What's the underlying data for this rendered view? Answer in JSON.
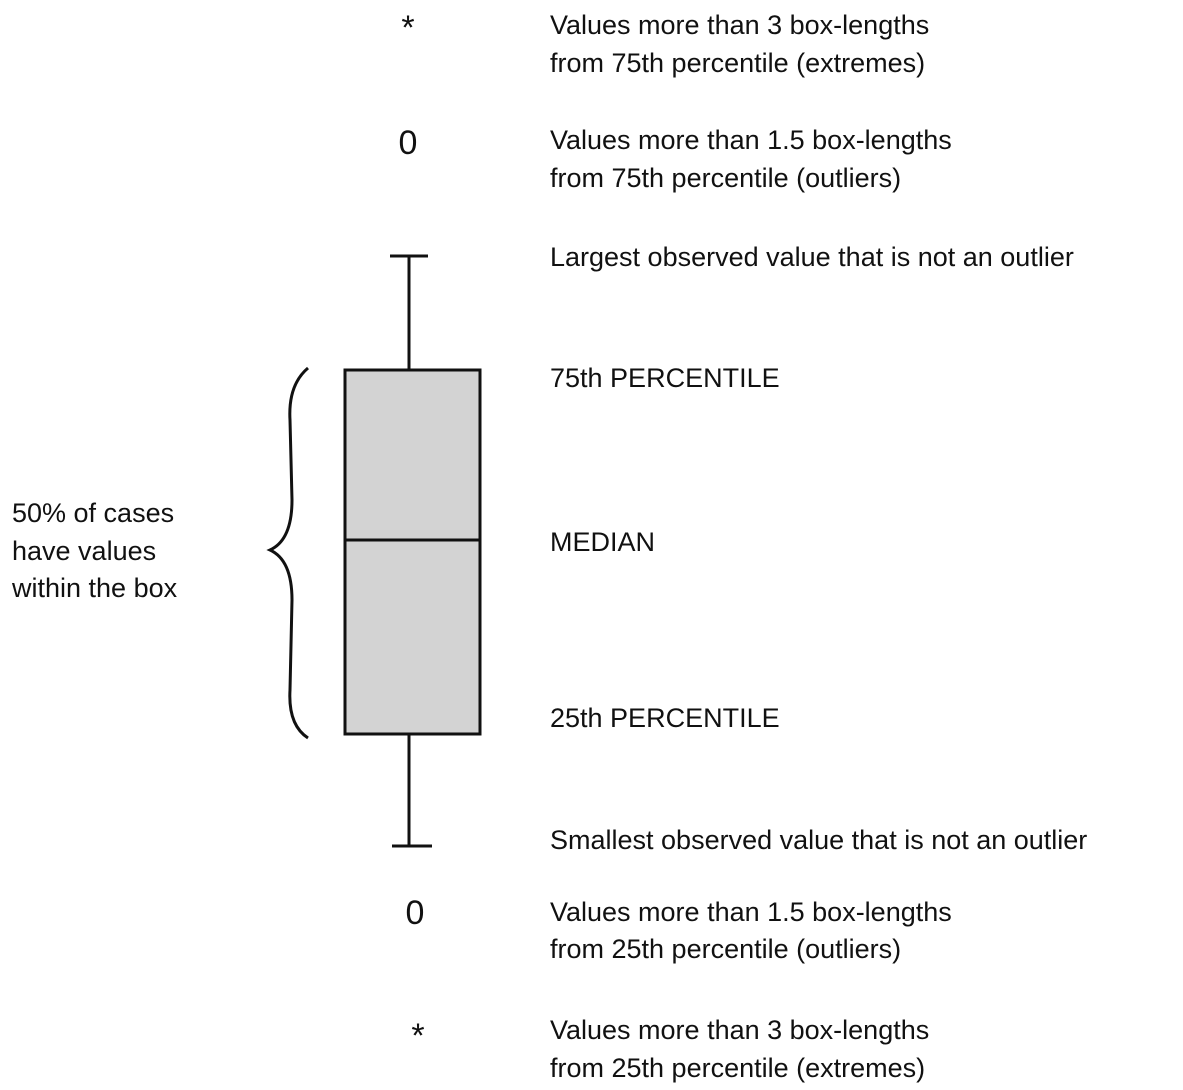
{
  "upper_extremes": {
    "symbol": "*",
    "lines": [
      "Values more than 3 box-lengths",
      "from 75th percentile (extremes)"
    ]
  },
  "upper_outliers": {
    "symbol": "0",
    "lines": [
      "Values more than 1.5 box-lengths",
      "from 75th percentile (outliers)"
    ]
  },
  "upper_whisker": "Largest observed value that is not an outlier",
  "q3": "75th PERCENTILE",
  "median": "MEDIAN",
  "q1": "25th PERCENTILE",
  "lower_whisker": "Smallest observed value that is not an outlier",
  "lower_outliers": {
    "symbol": "0",
    "lines": [
      "Values more than 1.5 box-lengths",
      "from 25th percentile (outliers)"
    ]
  },
  "lower_extremes": {
    "symbol": "*",
    "lines": [
      "Values more than 3 box-lengths",
      "from 25th percentile (extremes)"
    ]
  },
  "box_note": [
    "50% of cases",
    "have values",
    "within the box"
  ]
}
